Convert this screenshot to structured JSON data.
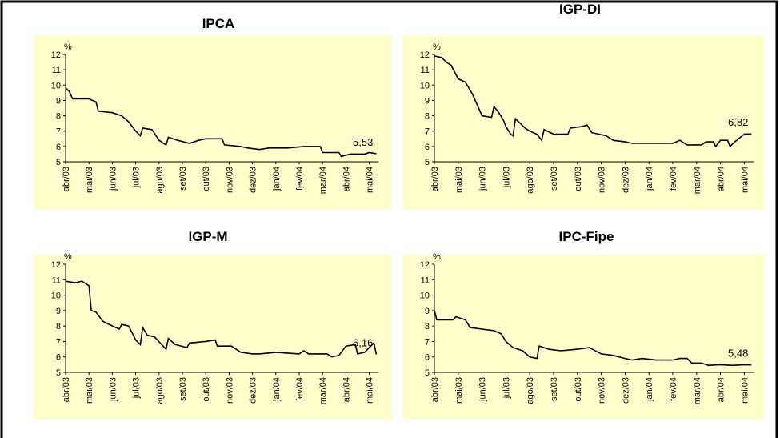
{
  "chart_data": [
    {
      "type": "line",
      "title": "IPCA",
      "y_label": "%",
      "xlim": [
        0,
        13.4
      ],
      "ylim": [
        5,
        12
      ],
      "yticks": [
        5,
        6,
        7,
        8,
        9,
        10,
        11,
        12
      ],
      "xticks": [
        {
          "value": 0,
          "label": "abr/03"
        },
        {
          "value": 1,
          "label": "mai/03"
        },
        {
          "value": 2,
          "label": "jun/03"
        },
        {
          "value": 3,
          "label": "jul/03"
        },
        {
          "value": 4,
          "label": "ago/03"
        },
        {
          "value": 5,
          "label": "set/03"
        },
        {
          "value": 6,
          "label": "out/03"
        },
        {
          "value": 7,
          "label": "nov/03"
        },
        {
          "value": 8,
          "label": "dez/03"
        },
        {
          "value": 9,
          "label": "jan/04"
        },
        {
          "value": 10,
          "label": "fev/04"
        },
        {
          "value": 11,
          "label": "mar/04"
        },
        {
          "value": 12,
          "label": "abr/04"
        },
        {
          "value": 13,
          "label": "mai/04"
        }
      ],
      "annotation": {
        "value": 5.53,
        "label": "5,53"
      },
      "series": [
        {
          "color": "#000000",
          "x": [
            0,
            0.15,
            0.3,
            1,
            1.3,
            1.4,
            2,
            2.4,
            2.7,
            3,
            3.2,
            3.3,
            3.7,
            4,
            4.3,
            4.4,
            4.8,
            5.3,
            5.7,
            6,
            6.7,
            6.8,
            7.5,
            7.8,
            8.3,
            8.7,
            9.5,
            10.2,
            10.9,
            11,
            11.7,
            11.8,
            12.2,
            12.8,
            13,
            13.3
          ],
          "values": [
            9.8,
            9.6,
            9.1,
            9.1,
            8.9,
            8.3,
            8.2,
            8.0,
            7.6,
            7.0,
            6.7,
            7.2,
            7.1,
            6.4,
            6.1,
            6.6,
            6.4,
            6.2,
            6.4,
            6.5,
            6.5,
            6.1,
            6.0,
            5.9,
            5.8,
            5.9,
            5.9,
            6.0,
            6.0,
            5.6,
            5.6,
            5.35,
            5.5,
            5.5,
            5.6,
            5.53
          ]
        }
      ]
    },
    {
      "type": "line",
      "title": "IGP-DI",
      "y_label": "%",
      "xlim": [
        0,
        13.4
      ],
      "ylim": [
        5,
        12
      ],
      "yticks": [
        5,
        6,
        7,
        8,
        9,
        10,
        11,
        12
      ],
      "xticks": [
        {
          "value": 0,
          "label": "abr/03"
        },
        {
          "value": 1,
          "label": "mai/03"
        },
        {
          "value": 2,
          "label": "jun/03"
        },
        {
          "value": 3,
          "label": "jul/03"
        },
        {
          "value": 4,
          "label": "ago/03"
        },
        {
          "value": 5,
          "label": "set/03"
        },
        {
          "value": 6,
          "label": "out/03"
        },
        {
          "value": 7,
          "label": "nov/03"
        },
        {
          "value": 8,
          "label": "dez/03"
        },
        {
          "value": 9,
          "label": "jan/04"
        },
        {
          "value": 10,
          "label": "fev/04"
        },
        {
          "value": 11,
          "label": "mar/04"
        },
        {
          "value": 12,
          "label": "abr/04"
        },
        {
          "value": 13,
          "label": "mai/04"
        }
      ],
      "annotation": {
        "value": 6.82,
        "label": "6,82"
      },
      "series": [
        {
          "color": "#000000",
          "x": [
            0,
            0.3,
            0.5,
            0.7,
            1,
            1.3,
            1.6,
            1.8,
            2,
            2.4,
            2.5,
            2.7,
            2.9,
            3,
            3.2,
            3.3,
            3.4,
            3.6,
            3.8,
            4,
            4.3,
            4.5,
            4.6,
            5,
            5.6,
            5.7,
            6.2,
            6.4,
            6.6,
            7.2,
            7.5,
            8,
            8.3,
            9.7,
            10,
            10.3,
            10.6,
            11.2,
            11.4,
            11.7,
            11.8,
            12,
            12.3,
            12.4,
            12.6,
            13,
            13.3
          ],
          "values": [
            11.9,
            11.8,
            11.5,
            11.3,
            10.4,
            10.2,
            9.4,
            8.7,
            8.0,
            7.9,
            8.6,
            8.2,
            7.7,
            7.3,
            6.8,
            6.7,
            7.8,
            7.5,
            7.2,
            7.0,
            6.8,
            6.4,
            7.1,
            6.8,
            6.8,
            7.2,
            7.3,
            7.4,
            6.9,
            6.7,
            6.4,
            6.3,
            6.2,
            6.2,
            6.2,
            6.4,
            6.1,
            6.1,
            6.3,
            6.3,
            6.0,
            6.4,
            6.4,
            6.0,
            6.3,
            6.8,
            6.82
          ]
        }
      ]
    },
    {
      "type": "line",
      "title": "IGP-M",
      "y_label": "%",
      "xlim": [
        0,
        13.4
      ],
      "ylim": [
        5,
        12
      ],
      "yticks": [
        5,
        6,
        7,
        8,
        9,
        10,
        11,
        12
      ],
      "xticks": [
        {
          "value": 0,
          "label": "abr/03"
        },
        {
          "value": 1,
          "label": "mai/03"
        },
        {
          "value": 2,
          "label": "jun/03"
        },
        {
          "value": 3,
          "label": "jul/03"
        },
        {
          "value": 4,
          "label": "ago/03"
        },
        {
          "value": 5,
          "label": "set/03"
        },
        {
          "value": 6,
          "label": "out/03"
        },
        {
          "value": 7,
          "label": "nov/03"
        },
        {
          "value": 8,
          "label": "dez/03"
        },
        {
          "value": 9,
          "label": "jan/04"
        },
        {
          "value": 10,
          "label": "fev/04"
        },
        {
          "value": 11,
          "label": "mar/04"
        },
        {
          "value": 12,
          "label": "abr/04"
        },
        {
          "value": 13,
          "label": "mai/04"
        }
      ],
      "annotation": {
        "value": 6.16,
        "label": "6,16"
      },
      "series": [
        {
          "color": "#000000",
          "x": [
            0,
            0.4,
            0.7,
            1,
            1.1,
            1.3,
            1.6,
            2,
            2.3,
            2.4,
            2.7,
            3,
            3.2,
            3.3,
            3.5,
            3.8,
            4.3,
            4.4,
            4.7,
            5.2,
            5.3,
            6,
            6.4,
            6.5,
            7.1,
            7.5,
            8,
            8.3,
            9,
            10,
            10.2,
            10.4,
            11.2,
            11.4,
            11.7,
            12,
            12.4,
            12.5,
            12.8,
            13,
            13.2,
            13.3
          ],
          "values": [
            10.9,
            10.8,
            10.9,
            10.6,
            9.0,
            8.9,
            8.3,
            8.0,
            7.8,
            8.1,
            8.0,
            7.1,
            6.8,
            7.9,
            7.4,
            7.3,
            6.5,
            7.2,
            6.8,
            6.6,
            6.9,
            7.0,
            7.1,
            6.7,
            6.7,
            6.3,
            6.2,
            6.2,
            6.3,
            6.2,
            6.4,
            6.2,
            6.2,
            6.0,
            6.1,
            6.7,
            6.8,
            6.2,
            6.3,
            6.6,
            6.9,
            6.16
          ]
        }
      ]
    },
    {
      "type": "line",
      "title": "IPC-Fipe",
      "y_label": "%",
      "xlim": [
        0,
        13.4
      ],
      "ylim": [
        5,
        12
      ],
      "yticks": [
        5,
        6,
        7,
        8,
        9,
        10,
        11,
        12
      ],
      "xticks": [
        {
          "value": 0,
          "label": "abr/03"
        },
        {
          "value": 1,
          "label": "mai/03"
        },
        {
          "value": 2,
          "label": "jun/03"
        },
        {
          "value": 3,
          "label": "jul/03"
        },
        {
          "value": 4,
          "label": "ago/03"
        },
        {
          "value": 5,
          "label": "set/03"
        },
        {
          "value": 6,
          "label": "out/03"
        },
        {
          "value": 7,
          "label": "nov/03"
        },
        {
          "value": 8,
          "label": "dez/03"
        },
        {
          "value": 9,
          "label": "jan/04"
        },
        {
          "value": 10,
          "label": "fev/04"
        },
        {
          "value": 11,
          "label": "mar/04"
        },
        {
          "value": 12,
          "label": "abr/04"
        },
        {
          "value": 13,
          "label": "mai/04"
        }
      ],
      "annotation": {
        "value": 5.48,
        "label": "5,48"
      },
      "series": [
        {
          "color": "#000000",
          "x": [
            0,
            0.1,
            0.8,
            0.9,
            1.3,
            1.5,
            2,
            2.5,
            2.8,
            3,
            3.3,
            3.7,
            4,
            4.3,
            4.4,
            4.8,
            5.3,
            6,
            6.5,
            7,
            7.5,
            8,
            8.3,
            8.7,
            9.3,
            10,
            10.3,
            10.6,
            10.8,
            11.2,
            11.5,
            12,
            12.5,
            13,
            13.3
          ],
          "values": [
            9.0,
            8.4,
            8.4,
            8.6,
            8.4,
            7.9,
            7.8,
            7.7,
            7.5,
            7.0,
            6.6,
            6.4,
            6.0,
            5.9,
            6.7,
            6.5,
            6.4,
            6.5,
            6.6,
            6.2,
            6.1,
            5.9,
            5.8,
            5.9,
            5.8,
            5.8,
            5.9,
            5.9,
            5.6,
            5.6,
            5.45,
            5.5,
            5.45,
            5.5,
            5.48
          ]
        }
      ]
    }
  ]
}
